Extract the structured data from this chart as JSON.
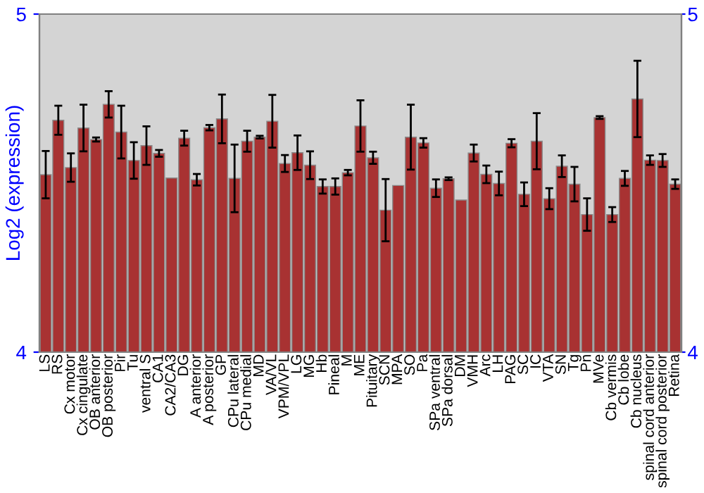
{
  "chart_data": {
    "type": "bar",
    "ylabel": "Log2 (expression)",
    "categories": [
      "LS",
      "RS",
      "Cx motor",
      "Cx cingulate",
      "OB anterior",
      "OB posterior",
      "Pir",
      "Tu",
      "ventral S",
      "CA1",
      "CA2/CA3",
      "DG",
      "A anterior",
      "A posterior",
      "GP",
      "CPu lateral",
      "CPu medial",
      "MD",
      "VA/VL",
      "VPM/VPL",
      "LG",
      "MG",
      "Hb",
      "Pineal",
      "M",
      "ME",
      "Pituitary",
      "SCN",
      "MPA",
      "SO",
      "Pa",
      "SPa ventral",
      "SPa dorsal",
      "DM",
      "VMH",
      "Arc",
      "LH",
      "PAG",
      "SC",
      "IC",
      "VTA",
      "SN",
      "Tg",
      "Pn",
      "MVe",
      "Cb vermis",
      "Cb lobe",
      "Cb nucleus",
      "spinal cord anterior",
      "spinal cord posterior",
      "Retina"
    ],
    "values": [
      4.525,
      4.686,
      4.546,
      4.663,
      4.629,
      4.733,
      4.651,
      4.567,
      4.611,
      4.588,
      4.515,
      4.633,
      4.51,
      4.664,
      4.69,
      4.514,
      4.624,
      4.636,
      4.683,
      4.558,
      4.59,
      4.553,
      4.49,
      4.49,
      4.531,
      4.669,
      4.575,
      4.42,
      4.493,
      4.636,
      4.619,
      4.485,
      4.513,
      4.45,
      4.589,
      4.526,
      4.499,
      4.618,
      4.467,
      4.624,
      4.454,
      4.55,
      4.497,
      4.407,
      4.694,
      4.407,
      4.514,
      4.749,
      4.568,
      4.567,
      4.497
    ],
    "errors": [
      0.07,
      0.043,
      0.042,
      0.069,
      0.006,
      0.039,
      0.078,
      0.054,
      0.057,
      0.01,
      null,
      0.022,
      0.017,
      0.008,
      0.072,
      0.1,
      0.031,
      0.004,
      0.078,
      0.025,
      0.051,
      0.041,
      0.021,
      0.024,
      0.008,
      0.076,
      0.018,
      0.092,
      null,
      0.096,
      0.014,
      0.026,
      0.004,
      null,
      0.025,
      0.026,
      0.035,
      0.012,
      0.035,
      0.083,
      0.031,
      0.032,
      0.051,
      0.048,
      0.004,
      0.022,
      0.022,
      0.113,
      0.014,
      0.019,
      0.014
    ],
    "color": "#a83232",
    "ylim": [
      4,
      5
    ],
    "yticks": [
      4,
      5
    ],
    "y2lim": [
      4,
      5
    ],
    "y2ticks": [
      4,
      5
    ],
    "grid": false,
    "legend": false
  }
}
